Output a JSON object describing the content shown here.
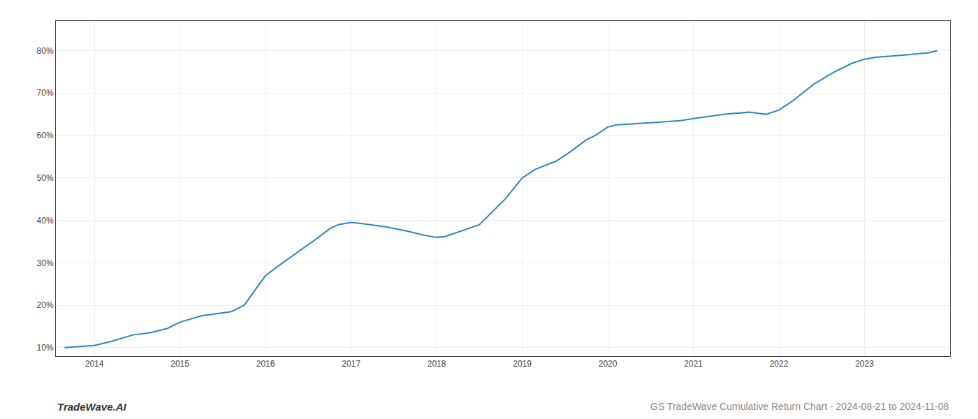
{
  "chart_data": {
    "type": "line",
    "title": "GS TradeWave Cumulative Return Chart - 2024-08-21 to 2024-11-08",
    "annotations": [
      "TradeWave.AI"
    ],
    "x": [
      2013.65,
      2014.0,
      2014.2,
      2014.45,
      2014.65,
      2014.85,
      2015.0,
      2015.25,
      2015.6,
      2015.75,
      2016.0,
      2016.2,
      2016.55,
      2016.75,
      2016.85,
      2017.0,
      2017.1,
      2017.4,
      2017.65,
      2017.75,
      2017.85,
      2018.0,
      2018.1,
      2018.5,
      2018.65,
      2018.8,
      2019.0,
      2019.15,
      2019.4,
      2019.55,
      2019.75,
      2019.85,
      2020.0,
      2020.1,
      2020.5,
      2020.65,
      2020.85,
      2021.0,
      2021.1,
      2021.35,
      2021.65,
      2021.85,
      2022.0,
      2022.15,
      2022.4,
      2022.65,
      2022.85,
      2023.0,
      2023.15,
      2023.5,
      2023.75,
      2023.85
    ],
    "values": [
      10,
      10.5,
      11.5,
      13,
      13.5,
      14.5,
      16,
      17.5,
      18.5,
      20,
      27,
      30,
      35,
      38,
      39,
      39.5,
      39.3,
      38.5,
      37.5,
      37,
      36.5,
      36,
      36.2,
      39,
      42,
      45,
      50,
      52,
      54,
      56,
      59,
      60,
      62,
      62.5,
      63,
      63.2,
      63.5,
      64,
      64.3,
      65,
      65.5,
      65,
      66,
      68,
      72,
      75,
      77,
      78,
      78.5,
      79,
      79.5,
      80
    ],
    "color": "#2e86c1",
    "xlim": [
      2013.55,
      2024.0
    ],
    "xticks": [
      2014,
      2015,
      2016,
      2017,
      2018,
      2019,
      2020,
      2021,
      2022,
      2023
    ],
    "ylim": [
      8,
      87
    ],
    "yticks": [
      {
        "value": 10,
        "label": "10%"
      },
      {
        "value": 20,
        "label": "20%"
      },
      {
        "value": 30,
        "label": "30%"
      },
      {
        "value": 40,
        "label": "40%"
      },
      {
        "value": 50,
        "label": "50%"
      },
      {
        "value": 60,
        "label": "60%"
      },
      {
        "value": 70,
        "label": "70%"
      },
      {
        "value": 80,
        "label": "80%"
      }
    ],
    "grid": true
  }
}
